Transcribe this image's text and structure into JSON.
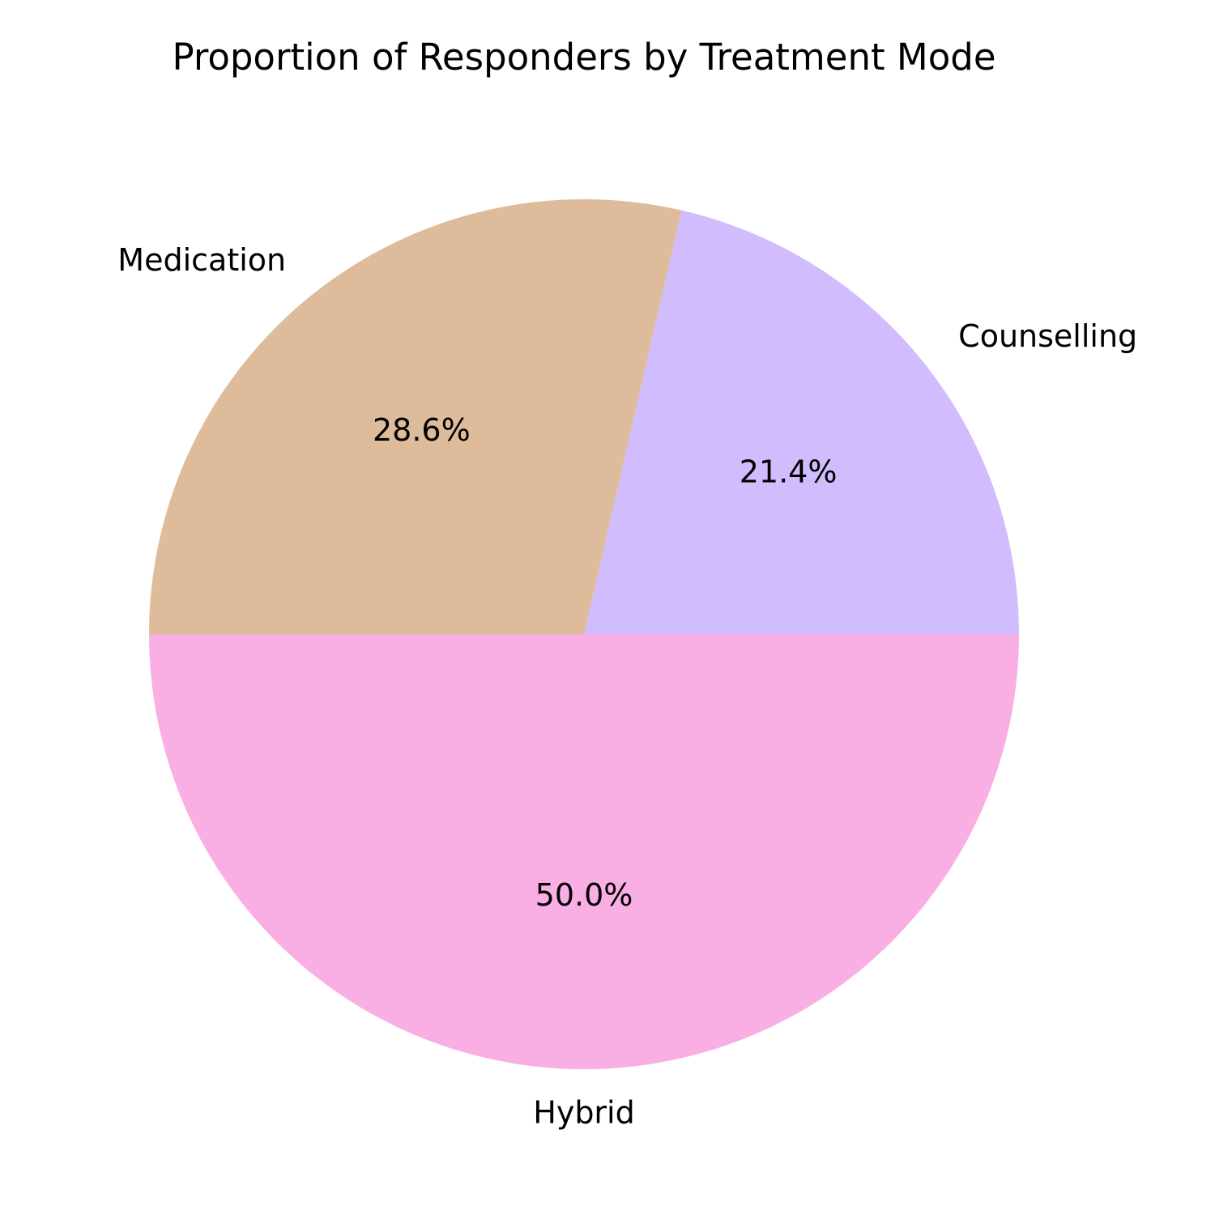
{
  "chart_data": {
    "type": "pie",
    "title": "Proportion of Responders by Treatment Mode",
    "slices": [
      {
        "label": "Counselling",
        "value": 21.4,
        "pct_label": "21.4%",
        "color": "#d1bcfd"
      },
      {
        "label": "Medication",
        "value": 28.6,
        "pct_label": "28.6%",
        "color": "#debb9b"
      },
      {
        "label": "Hybrid",
        "value": 50.0,
        "pct_label": "50.0%",
        "color": "#f9aee4"
      }
    ],
    "start_angle_deg": 0,
    "direction": "counterclockwise",
    "legend": "none"
  }
}
